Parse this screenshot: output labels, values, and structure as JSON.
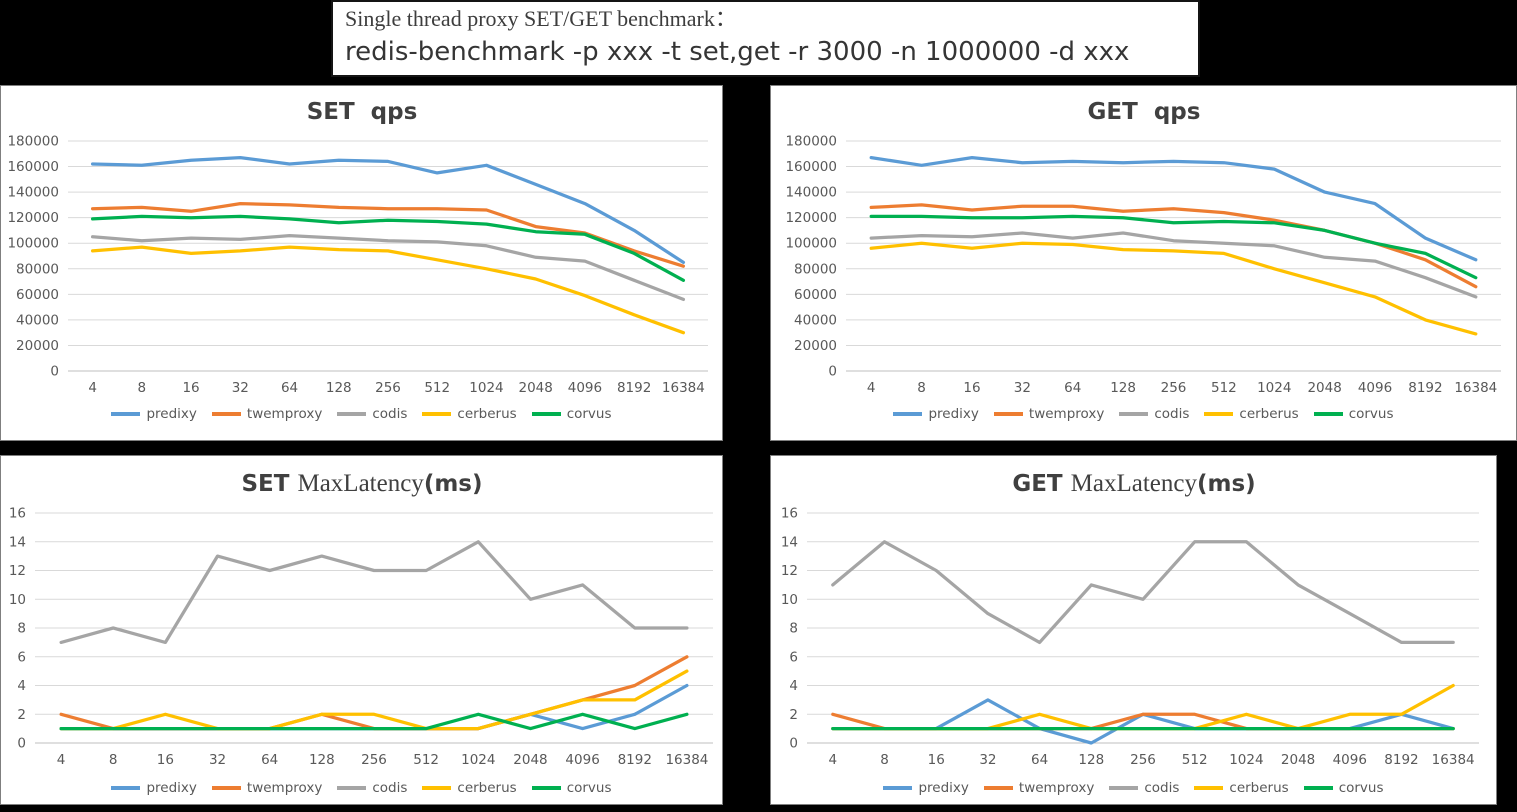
{
  "header": {
    "line1": "Single thread proxy SET/GET benchmark：",
    "line2": "redis-benchmark -p xxx -t set,get -r 3000 -n 1000000 -d xxx"
  },
  "legend": [
    "predixy",
    "twemproxy",
    "codis",
    "cerberus",
    "corvus"
  ],
  "colors": {
    "predixy": "#5B9BD5",
    "twemproxy": "#ED7D31",
    "codis": "#A5A5A5",
    "cerberus": "#FFC000",
    "corvus": "#00B050",
    "gridline": "#D9D9D9",
    "axis_line": "#BFBFBF",
    "tick_text": "#595959",
    "title_text": "#404040"
  },
  "chart_data": [
    {
      "id": "set-qps",
      "type": "line",
      "title": "SET  qps",
      "categories": [
        "4",
        "8",
        "16",
        "32",
        "64",
        "128",
        "256",
        "512",
        "1024",
        "2048",
        "4096",
        "8192",
        "16384"
      ],
      "ylim": [
        0,
        180000
      ],
      "ytick": 20000,
      "grid": true,
      "legend_position": "bottom",
      "series": [
        {
          "name": "predixy",
          "values": [
            162000,
            161000,
            165000,
            167000,
            162000,
            165000,
            164000,
            155000,
            161000,
            146000,
            131000,
            110000,
            85000
          ]
        },
        {
          "name": "twemproxy",
          "values": [
            127000,
            128000,
            125000,
            131000,
            130000,
            128000,
            127000,
            127000,
            126000,
            113000,
            108000,
            94000,
            82000
          ]
        },
        {
          "name": "codis",
          "values": [
            105000,
            102000,
            104000,
            103000,
            106000,
            104000,
            102000,
            101000,
            98000,
            89000,
            86000,
            71000,
            56000
          ]
        },
        {
          "name": "cerberus",
          "values": [
            94000,
            97000,
            92000,
            94000,
            97000,
            95000,
            94000,
            87000,
            80000,
            72000,
            59000,
            44000,
            30000
          ]
        },
        {
          "name": "corvus",
          "values": [
            119000,
            121000,
            120000,
            121000,
            119000,
            116000,
            118000,
            117000,
            115000,
            109000,
            107000,
            92000,
            71000
          ]
        }
      ]
    },
    {
      "id": "get-qps",
      "type": "line",
      "title": "GET  qps",
      "categories": [
        "4",
        "8",
        "16",
        "32",
        "64",
        "128",
        "256",
        "512",
        "1024",
        "2048",
        "4096",
        "8192",
        "16384"
      ],
      "ylim": [
        0,
        180000
      ],
      "ytick": 20000,
      "grid": true,
      "legend_position": "bottom",
      "series": [
        {
          "name": "predixy",
          "values": [
            167000,
            161000,
            167000,
            163000,
            164000,
            163000,
            164000,
            163000,
            158000,
            140000,
            131000,
            104000,
            87000
          ]
        },
        {
          "name": "twemproxy",
          "values": [
            128000,
            130000,
            126000,
            129000,
            129000,
            125000,
            127000,
            124000,
            118000,
            110000,
            100000,
            87000,
            66000
          ]
        },
        {
          "name": "codis",
          "values": [
            104000,
            106000,
            105000,
            108000,
            104000,
            108000,
            102000,
            100000,
            98000,
            89000,
            86000,
            73000,
            58000
          ]
        },
        {
          "name": "cerberus",
          "values": [
            96000,
            100000,
            96000,
            100000,
            99000,
            95000,
            94000,
            92000,
            80000,
            69000,
            58000,
            40000,
            29000
          ]
        },
        {
          "name": "corvus",
          "values": [
            121000,
            121000,
            120000,
            120000,
            121000,
            120000,
            116000,
            117000,
            116000,
            110000,
            100000,
            92000,
            73000
          ]
        }
      ]
    },
    {
      "id": "set-maxlatency",
      "type": "line",
      "title_parts": [
        {
          "text": "SET ",
          "style": "bold"
        },
        {
          "text": "MaxLatency",
          "style": "serif"
        },
        {
          "text": "(ms)",
          "style": "bold"
        }
      ],
      "categories": [
        "4",
        "8",
        "16",
        "32",
        "64",
        "128",
        "256",
        "512",
        "1024",
        "2048",
        "4096",
        "8192",
        "16384"
      ],
      "ylim": [
        0,
        16
      ],
      "ytick": 2,
      "grid": true,
      "legend_position": "bottom",
      "series": [
        {
          "name": "predixy",
          "values": [
            1,
            1,
            1,
            1,
            1,
            1,
            1,
            1,
            1,
            2,
            1,
            2,
            4
          ]
        },
        {
          "name": "twemproxy",
          "values": [
            2,
            1,
            1,
            1,
            1,
            2,
            1,
            1,
            1,
            2,
            3,
            4,
            6
          ]
        },
        {
          "name": "codis",
          "values": [
            7,
            8,
            7,
            13,
            12,
            13,
            12,
            12,
            14,
            10,
            11,
            8,
            8
          ]
        },
        {
          "name": "cerberus",
          "values": [
            1,
            1,
            2,
            1,
            1,
            2,
            2,
            1,
            1,
            2,
            3,
            3,
            5
          ]
        },
        {
          "name": "corvus",
          "values": [
            1,
            1,
            1,
            1,
            1,
            1,
            1,
            1,
            2,
            1,
            2,
            1,
            2
          ]
        }
      ]
    },
    {
      "id": "get-maxlatency",
      "type": "line",
      "title_parts": [
        {
          "text": "GET ",
          "style": "bold"
        },
        {
          "text": "MaxLatency",
          "style": "serif"
        },
        {
          "text": "(ms)",
          "style": "bold"
        }
      ],
      "categories": [
        "4",
        "8",
        "16",
        "32",
        "64",
        "128",
        "256",
        "512",
        "1024",
        "2048",
        "4096",
        "8192",
        "16384"
      ],
      "ylim": [
        0,
        16
      ],
      "ytick": 2,
      "grid": true,
      "legend_position": "bottom",
      "series": [
        {
          "name": "predixy",
          "values": [
            1,
            1,
            1,
            3,
            1,
            0,
            2,
            1,
            1,
            1,
            1,
            2,
            1
          ]
        },
        {
          "name": "twemproxy",
          "values": [
            2,
            1,
            1,
            1,
            1,
            1,
            2,
            2,
            1,
            1,
            1,
            1,
            1
          ]
        },
        {
          "name": "codis",
          "values": [
            11,
            14,
            12,
            9,
            7,
            11,
            10,
            14,
            14,
            11,
            9,
            7,
            7
          ]
        },
        {
          "name": "cerberus",
          "values": [
            1,
            1,
            1,
            1,
            2,
            1,
            1,
            1,
            2,
            1,
            2,
            2,
            4
          ]
        },
        {
          "name": "corvus",
          "values": [
            1,
            1,
            1,
            1,
            1,
            1,
            1,
            1,
            1,
            1,
            1,
            1,
            1
          ]
        }
      ]
    }
  ]
}
